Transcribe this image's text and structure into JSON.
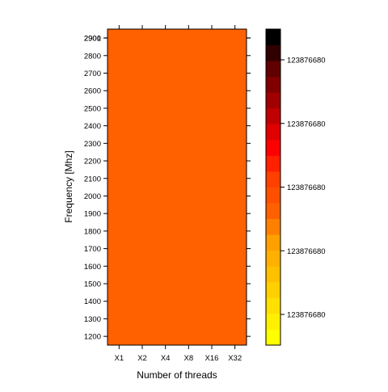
{
  "chart_data": {
    "type": "heatmap",
    "title": "",
    "xlabel": "Number of threads",
    "ylabel": "Frequency [Mhz]",
    "x_categories": [
      "X1",
      "X2",
      "X4",
      "X8",
      "X16",
      "X32"
    ],
    "y_categories": [
      1200,
      1300,
      1400,
      1500,
      1600,
      1700,
      1800,
      1900,
      2000,
      2100,
      2200,
      2300,
      2400,
      2500,
      2600,
      2700,
      2800,
      2900,
      2901
    ],
    "ylim": [
      1150,
      2951
    ],
    "cell_value": 123876680,
    "cell_color": "#FF6000",
    "colorkey": {
      "tick_labels": [
        "123876680",
        "123876680",
        "123876680",
        "123876680",
        "123876680"
      ],
      "colors_bottom_to_top": [
        "#FFFF00",
        "#FFF000",
        "#FFE000",
        "#FFD000",
        "#FFC000",
        "#FFB000",
        "#FFA000",
        "#FF8000",
        "#FF6000",
        "#FF5000",
        "#FF4000",
        "#FF2000",
        "#FF0000",
        "#E00000",
        "#C00000",
        "#A00000",
        "#800000",
        "#600000",
        "#300000",
        "#000000"
      ]
    }
  }
}
